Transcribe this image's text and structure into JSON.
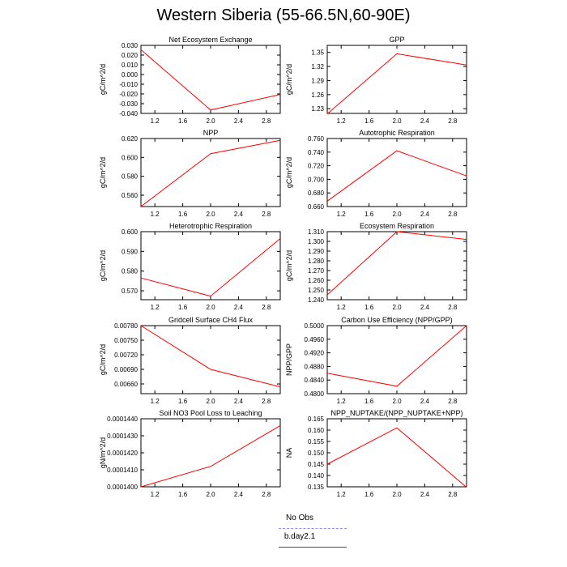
{
  "title": "Western Siberia (55-66.5N,60-90E)",
  "legend": {
    "items": [
      {
        "label": "No Obs",
        "color": "#8c8cff",
        "dash": true
      },
      {
        "label": "b.day2.1",
        "color": "#ff0000",
        "dash": false
      }
    ]
  },
  "chart_data": [
    {
      "type": "line",
      "title": "Net Ecosystem Exchange",
      "ylabel": "gC/m^2/d",
      "xlim": [
        1,
        3
      ],
      "ylim": [
        -0.04,
        0.03
      ],
      "xticks": [
        1.2,
        1.6,
        2.0,
        2.4,
        2.8
      ],
      "xtick_labels": [
        "1.2",
        "1.6",
        "2.0",
        "2.4",
        "2.8"
      ],
      "yticks": [
        -0.04,
        -0.03,
        -0.02,
        -0.01,
        0.0,
        0.01,
        0.02,
        0.03
      ],
      "ytick_labels": [
        "-0.040",
        "-0.030",
        "-0.020",
        "-0.010",
        "0.000",
        "0.010",
        "0.020",
        "0.030"
      ],
      "series": [
        {
          "x": [
            1,
            2,
            3
          ],
          "y": [
            0.0255,
            -0.0365,
            -0.0205
          ]
        }
      ]
    },
    {
      "type": "line",
      "title": "GPP",
      "ylabel": "gC/m^2/d",
      "xlim": [
        1,
        3
      ],
      "ylim": [
        1.22,
        1.365
      ],
      "xticks": [
        1.2,
        1.6,
        2.0,
        2.4,
        2.8
      ],
      "xtick_labels": [
        "1.2",
        "1.6",
        "2.0",
        "2.4",
        "2.8"
      ],
      "yticks": [
        1.23,
        1.26,
        1.29,
        1.32,
        1.35
      ],
      "ytick_labels": [
        "1.23",
        "1.26",
        "1.29",
        "1.32",
        "1.35"
      ],
      "series": [
        {
          "x": [
            1,
            2,
            3
          ],
          "y": [
            1.219,
            1.347,
            1.323
          ]
        }
      ]
    },
    {
      "type": "line",
      "title": "NPP",
      "ylabel": "gC/m^2/d",
      "xlim": [
        1,
        3
      ],
      "ylim": [
        0.548,
        0.62
      ],
      "xticks": [
        1.2,
        1.6,
        2.0,
        2.4,
        2.8
      ],
      "xtick_labels": [
        "1.2",
        "1.6",
        "2.0",
        "2.4",
        "2.8"
      ],
      "yticks": [
        0.56,
        0.58,
        0.6,
        0.62
      ],
      "ytick_labels": [
        "0.560",
        "0.580",
        "0.600",
        "0.620"
      ],
      "series": [
        {
          "x": [
            1,
            2,
            3
          ],
          "y": [
            0.548,
            0.604,
            0.618
          ]
        }
      ]
    },
    {
      "type": "line",
      "title": "Autotrophic Respiration",
      "ylabel": "gC/m^2/d",
      "xlim": [
        1,
        3
      ],
      "ylim": [
        0.66,
        0.76
      ],
      "xticks": [
        1.2,
        1.6,
        2.0,
        2.4,
        2.8
      ],
      "xtick_labels": [
        "1.2",
        "1.6",
        "2.0",
        "2.4",
        "2.8"
      ],
      "yticks": [
        0.66,
        0.68,
        0.7,
        0.72,
        0.74,
        0.76
      ],
      "ytick_labels": [
        "0.660",
        "0.680",
        "0.700",
        "0.720",
        "0.740",
        "0.760"
      ],
      "series": [
        {
          "x": [
            1,
            2,
            3
          ],
          "y": [
            0.668,
            0.742,
            0.705
          ]
        }
      ]
    },
    {
      "type": "line",
      "title": "Heterotrophic Respiration",
      "ylabel": "gC/m^2/d",
      "xlim": [
        1,
        3
      ],
      "ylim": [
        0.5655,
        0.6
      ],
      "xticks": [
        1.2,
        1.6,
        2.0,
        2.4,
        2.8
      ],
      "xtick_labels": [
        "1.2",
        "1.6",
        "2.0",
        "2.4",
        "2.8"
      ],
      "yticks": [
        0.57,
        0.58,
        0.59,
        0.6
      ],
      "ytick_labels": [
        "0.570",
        "0.580",
        "0.590",
        "0.600"
      ],
      "series": [
        {
          "x": [
            1,
            2,
            3
          ],
          "y": [
            0.5765,
            0.5673,
            0.5965
          ]
        }
      ]
    },
    {
      "type": "line",
      "title": "Ecosystem Respiration",
      "ylabel": "gC/m^2/d",
      "xlim": [
        1,
        3
      ],
      "ylim": [
        1.24,
        1.31
      ],
      "xticks": [
        1.2,
        1.6,
        2.0,
        2.4,
        2.8
      ],
      "xtick_labels": [
        "1.2",
        "1.6",
        "2.0",
        "2.4",
        "2.8"
      ],
      "yticks": [
        1.24,
        1.25,
        1.26,
        1.27,
        1.28,
        1.29,
        1.3,
        1.31
      ],
      "ytick_labels": [
        "1.240",
        "1.250",
        "1.260",
        "1.270",
        "1.280",
        "1.290",
        "1.300",
        "1.310"
      ],
      "series": [
        {
          "x": [
            1,
            2,
            3
          ],
          "y": [
            1.245,
            1.31,
            1.302
          ]
        }
      ]
    },
    {
      "type": "line",
      "title": "Gridcell Surface CH4 Flux",
      "ylabel": "gC/m^2/d",
      "xlim": [
        1,
        3
      ],
      "ylim": [
        0.0064,
        0.0078
      ],
      "xticks": [
        1.2,
        1.6,
        2.0,
        2.4,
        2.8
      ],
      "xtick_labels": [
        "1.2",
        "1.6",
        "2.0",
        "2.4",
        "2.8"
      ],
      "yticks": [
        0.0066,
        0.0069,
        0.0072,
        0.0075,
        0.0078
      ],
      "ytick_labels": [
        "0.00660",
        "0.00690",
        "0.00720",
        "0.00750",
        "0.00780"
      ],
      "series": [
        {
          "x": [
            1,
            2,
            3
          ],
          "y": [
            0.0078,
            0.0069,
            0.00654
          ]
        }
      ]
    },
    {
      "type": "line",
      "title": "Carbon Use Efficiency (NPP/GPP)",
      "ylabel": "NPP/GPP",
      "xlim": [
        1,
        3
      ],
      "ylim": [
        0.48,
        0.5
      ],
      "xticks": [
        1.2,
        1.6,
        2.0,
        2.4,
        2.8
      ],
      "xtick_labels": [
        "1.2",
        "1.6",
        "2.0",
        "2.4",
        "2.8"
      ],
      "yticks": [
        0.48,
        0.484,
        0.488,
        0.492,
        0.496,
        0.5
      ],
      "ytick_labels": [
        "0.4800",
        "0.4840",
        "0.4880",
        "0.4920",
        "0.4960",
        "0.5000"
      ],
      "series": [
        {
          "x": [
            1,
            2,
            3
          ],
          "y": [
            0.486,
            0.4822,
            0.5
          ]
        }
      ]
    },
    {
      "type": "line",
      "title": "Soil NO3 Pool Loss to Leaching",
      "ylabel": "gN/m^2/d",
      "xlim": [
        1,
        3
      ],
      "ylim": [
        0.00014,
        0.000144
      ],
      "xticks": [
        1.2,
        1.6,
        2.0,
        2.4,
        2.8
      ],
      "xtick_labels": [
        "1.2",
        "1.6",
        "2.0",
        "2.4",
        "2.8"
      ],
      "yticks": [
        0.00014,
        0.000141,
        0.000142,
        0.000143,
        0.000144
      ],
      "ytick_labels": [
        "0.0001400",
        "0.0001410",
        "0.0001420",
        "0.0001430",
        "0.0001440"
      ],
      "series": [
        {
          "x": [
            1,
            2,
            3
          ],
          "y": [
            0.00014,
            0.0001412,
            0.0001436
          ]
        }
      ]
    },
    {
      "type": "line",
      "title": "NPP_NUPTAKE/(NPP_NUPTAKE+NPP)",
      "ylabel": "NA",
      "xlim": [
        1,
        3
      ],
      "ylim": [
        0.135,
        0.165
      ],
      "xticks": [
        1.2,
        1.6,
        2.0,
        2.4,
        2.8
      ],
      "xtick_labels": [
        "1.2",
        "1.6",
        "2.0",
        "2.4",
        "2.8"
      ],
      "yticks": [
        0.135,
        0.14,
        0.145,
        0.15,
        0.155,
        0.16,
        0.165
      ],
      "ytick_labels": [
        "0.135",
        "0.140",
        "0.145",
        "0.150",
        "0.155",
        "0.160",
        "0.165"
      ],
      "series": [
        {
          "x": [
            1,
            2,
            3
          ],
          "y": [
            0.145,
            0.161,
            0.1348
          ]
        }
      ]
    }
  ]
}
